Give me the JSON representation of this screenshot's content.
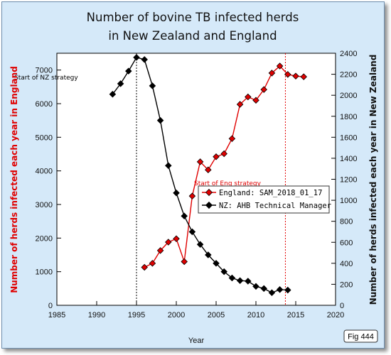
{
  "chart_data": {
    "type": "line",
    "title": [
      "Number of bovine TB infected herds",
      "in New Zealand and England"
    ],
    "xlabel": "Year",
    "ylabel_left": "Number of herds infected each year in England",
    "ylabel_right": "Number of herds infected each year in New Zealand",
    "xlim": [
      1985,
      2020
    ],
    "x_ticks": [
      1985,
      1990,
      1995,
      2000,
      2005,
      2010,
      2015,
      2020
    ],
    "ylim_left": [
      0,
      7500
    ],
    "y_ticks_left": [
      0,
      1000,
      2000,
      3000,
      4000,
      5000,
      6000,
      7000
    ],
    "ylim_right": [
      0,
      2400
    ],
    "y_ticks_right": [
      0,
      200,
      400,
      600,
      800,
      1000,
      1200,
      1400,
      1600,
      1800,
      2000,
      2200,
      2400
    ],
    "grid": false,
    "legend_position": "center-right",
    "series": [
      {
        "name": "England: SAM_2018_01_17",
        "axis": "left",
        "color": "#e00000",
        "x": [
          1996,
          1997,
          1998,
          1999,
          2000,
          2001,
          2002,
          2003,
          2004,
          2005,
          2006,
          2007,
          2008,
          2009,
          2010,
          2011,
          2012,
          2013,
          2014,
          2015,
          2016
        ],
        "y": [
          1130,
          1250,
          1630,
          1880,
          1980,
          1300,
          3250,
          4270,
          4030,
          4420,
          4510,
          4960,
          5980,
          6200,
          6100,
          6420,
          6910,
          7120,
          6870,
          6820,
          6800
        ]
      },
      {
        "name": "NZ: AHB Technical Manager",
        "axis": "right",
        "color": "#000000",
        "x": [
          1992,
          1993,
          1994,
          1995,
          1996,
          1997,
          1998,
          1999,
          2000,
          2001,
          2002,
          2003,
          2004,
          2005,
          2006,
          2007,
          2008,
          2009,
          2010,
          2011,
          2012,
          2013,
          2014
        ],
        "y": [
          2010,
          2110,
          2230,
          2360,
          2340,
          2090,
          1760,
          1330,
          1070,
          850,
          700,
          580,
          480,
          400,
          320,
          260,
          235,
          230,
          180,
          160,
          120,
          150,
          145
        ]
      }
    ],
    "annotations": [
      {
        "text": "Start of NZ strategy",
        "x": 1995,
        "color": "#000000",
        "line": "dotted"
      },
      {
        "text": "Start of Eng strategy",
        "x": 2013.7,
        "color": "#e00000",
        "line": "dotted"
      }
    ]
  },
  "figure_tag": "Fig 444"
}
